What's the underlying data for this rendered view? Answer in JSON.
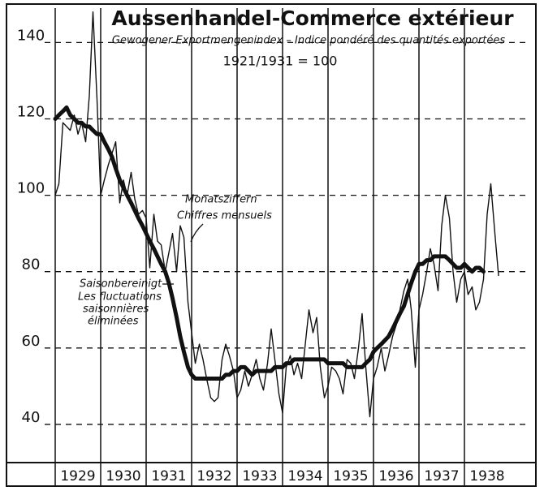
{
  "chart_data": {
    "type": "line",
    "title": "Aussenhandel-Commerce extérieur",
    "subtitle": "Gewogener Exportmengenindex – Indice pondéré des quantités exportées",
    "base": "1921/1931 = 100",
    "annotations": [
      "Monatsziffern",
      "Chiffres mensuels",
      "Saisonbereinigt",
      "Les fluctuations",
      "saisonnières",
      "éliminées"
    ],
    "x": [
      1929,
      1929.08,
      1929.17,
      1929.25,
      1929.33,
      1929.42,
      1929.5,
      1929.58,
      1929.67,
      1929.75,
      1929.83,
      1929.92,
      1930,
      1930.08,
      1930.17,
      1930.25,
      1930.33,
      1930.42,
      1930.5,
      1930.58,
      1930.67,
      1930.75,
      1930.83,
      1930.92,
      1931,
      1931.08,
      1931.17,
      1931.25,
      1931.33,
      1931.42,
      1931.5,
      1931.58,
      1931.67,
      1931.75,
      1931.83,
      1931.92,
      1932,
      1932.08,
      1932.17,
      1932.25,
      1932.33,
      1932.42,
      1932.5,
      1932.58,
      1932.67,
      1932.75,
      1932.83,
      1932.92,
      1933,
      1933.08,
      1933.17,
      1933.25,
      1933.33,
      1933.42,
      1933.5,
      1933.58,
      1933.67,
      1933.75,
      1933.83,
      1933.92,
      1934,
      1934.08,
      1934.17,
      1934.25,
      1934.33,
      1934.42,
      1934.5,
      1934.58,
      1934.67,
      1934.75,
      1934.83,
      1934.92,
      1935,
      1935.08,
      1935.17,
      1935.25,
      1935.33,
      1935.42,
      1935.5,
      1935.58,
      1935.67,
      1935.75,
      1935.83,
      1935.92,
      1936,
      1936.08,
      1936.17,
      1936.25,
      1936.33,
      1936.42,
      1936.5,
      1936.58,
      1936.67,
      1936.75,
      1936.83,
      1936.92,
      1937,
      1937.08,
      1937.17,
      1937.25,
      1937.33,
      1937.42,
      1937.5,
      1937.58,
      1937.67,
      1937.75,
      1937.83,
      1937.92,
      1938,
      1938.08,
      1938.17,
      1938.25,
      1938.33,
      1938.42,
      1938.5,
      1938.58,
      1938.67,
      1938.75
    ],
    "series": [
      {
        "name": "Monatsziffern",
        "color": "#111111",
        "width": 1.4,
        "values": [
          100,
          103,
          119,
          118,
          117,
          121,
          116,
          119,
          114,
          126,
          148,
          125,
          100,
          104,
          108,
          111,
          114,
          98,
          104,
          100,
          106,
          99,
          95,
          96,
          94,
          81,
          95,
          88,
          87,
          80,
          85,
          90,
          80,
          92,
          89,
          72,
          64,
          56,
          61,
          57,
          52,
          47,
          46,
          47,
          57,
          61,
          58,
          54,
          47,
          49,
          54,
          50,
          53,
          57,
          52,
          49,
          56,
          65,
          57,
          48,
          43,
          55,
          58,
          53,
          56,
          52,
          61,
          70,
          64,
          68,
          55,
          47,
          50,
          55,
          54,
          52,
          48,
          57,
          56,
          52,
          60,
          69,
          55,
          42,
          52,
          55,
          60,
          54,
          58,
          63,
          66,
          70,
          75,
          78,
          70,
          55,
          70,
          74,
          80,
          86,
          82,
          75,
          92,
          100,
          94,
          80,
          72,
          78,
          80,
          74,
          76,
          70,
          72,
          78,
          95,
          103,
          90,
          79
        ]
      },
      {
        "name": "Saisonbereinigt",
        "color": "#111111",
        "width": 5,
        "values": [
          120,
          121,
          122,
          123,
          121,
          120,
          119,
          119,
          118,
          118,
          117,
          116,
          116,
          114,
          112,
          110,
          107,
          104,
          102,
          100,
          98,
          96,
          94,
          92,
          90,
          88,
          86,
          84,
          82,
          80,
          77,
          73,
          68,
          63,
          59,
          55,
          53,
          52,
          52,
          52,
          52,
          52,
          52,
          52,
          52,
          53,
          53,
          54,
          54,
          55,
          55,
          54,
          53,
          54,
          54,
          54,
          54,
          54,
          55,
          55,
          55,
          56,
          56,
          57,
          57,
          57,
          57,
          57,
          57,
          57,
          57,
          57,
          56,
          56,
          56,
          56,
          56,
          55,
          55,
          55,
          55,
          55,
          56,
          57,
          59,
          60,
          61,
          62,
          63,
          65,
          67,
          69,
          71,
          74,
          77,
          80,
          82,
          82,
          83,
          83,
          84,
          84,
          84,
          84,
          83,
          82,
          81,
          81,
          82,
          81,
          80,
          81,
          81,
          80,
          null,
          null,
          null,
          null
        ]
      }
    ],
    "xlim": [
      1929,
      1939
    ],
    "xticks": [
      {
        "value": 1929,
        "label": "1929"
      },
      {
        "value": 1930,
        "label": "1930"
      },
      {
        "value": 1931,
        "label": "1931"
      },
      {
        "value": 1932,
        "label": "1932"
      },
      {
        "value": 1933,
        "label": "1933"
      },
      {
        "value": 1934,
        "label": "1934"
      },
      {
        "value": 1935,
        "label": "1935"
      },
      {
        "value": 1936,
        "label": "1936"
      },
      {
        "value": 1937,
        "label": "1937"
      },
      {
        "value": 1938,
        "label": "1938"
      }
    ],
    "ylim": [
      30,
      149
    ],
    "yticks": [
      40,
      60,
      80,
      100,
      120,
      140
    ],
    "grid": true
  }
}
